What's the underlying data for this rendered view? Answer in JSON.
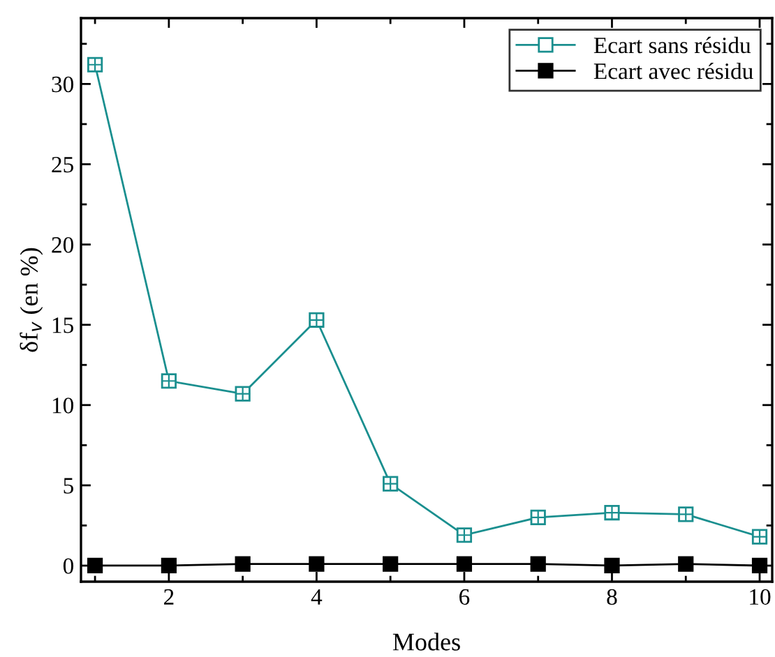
{
  "chart_data": {
    "type": "line",
    "xlabel": "Modes",
    "ylabel": "δf$_{v}$ (en %)",
    "x": [
      1,
      2,
      3,
      4,
      5,
      6,
      7,
      8,
      9,
      10
    ],
    "series": [
      {
        "name": "Ecart sans résidu",
        "color": "#1a8f8f",
        "marker": "square",
        "values": [
          31.2,
          11.5,
          10.7,
          15.3,
          5.1,
          1.9,
          3.0,
          3.3,
          3.2,
          1.8
        ]
      },
      {
        "name": "Ecart avec résidu",
        "color": "#000000",
        "marker": "square",
        "values": [
          0.0,
          0.0,
          0.1,
          0.1,
          0.1,
          0.1,
          0.1,
          0.0,
          0.1,
          0.0
        ]
      }
    ],
    "xlim": [
      0.81,
      10.17
    ],
    "ylim": [
      -1.0,
      34.1
    ],
    "xticks": [
      2,
      4,
      6,
      8,
      10
    ],
    "yticks": [
      0,
      5,
      10,
      15,
      20,
      25,
      30
    ],
    "grid": false,
    "legend": "top right",
    "line_style": "solid"
  }
}
